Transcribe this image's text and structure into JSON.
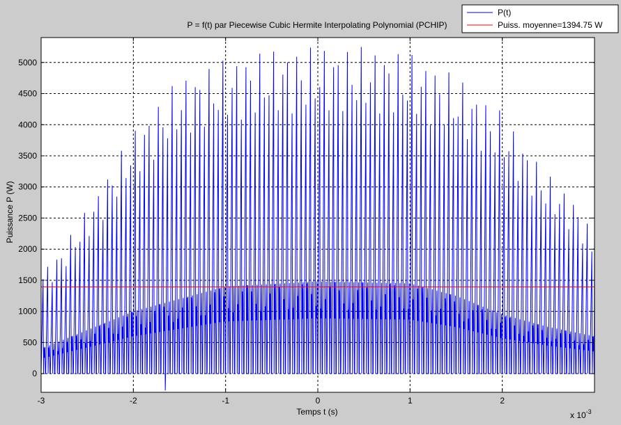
{
  "chart_data": {
    "type": "line",
    "title": "P  = f(t) par Piecewise Cubic Hermite Interpolating Polynomial (PCHIP)",
    "xlabel": "Temps t (s)",
    "ylabel": "Puissance P  (W)",
    "x_exponent_label": "x 10",
    "x_exponent_power": "-3",
    "xlim": [
      -3,
      3
    ],
    "ylim": [
      -300,
      5400
    ],
    "x_ticks": [
      "-3",
      "-2",
      "-1",
      "0",
      "1",
      "2"
    ],
    "x_tick_values": [
      -3,
      -2,
      -1,
      0,
      1,
      2
    ],
    "y_ticks": [
      "0",
      "500",
      "1000",
      "1500",
      "2000",
      "2500",
      "3000",
      "3500",
      "4000",
      "4500",
      "5000"
    ],
    "y_tick_values": [
      0,
      500,
      1000,
      1500,
      2000,
      2500,
      3000,
      3500,
      4000,
      4500,
      5000
    ],
    "grid": true,
    "legend_position": "top-right",
    "series": [
      {
        "name": "P(t)",
        "color": "#0000ff",
        "style": "oscillating",
        "cycles": 120,
        "peak_envelope": {
          "x": [
            -3,
            -2.8,
            -2.5,
            -2.2,
            -2.0,
            -1.5,
            -1.0,
            -0.5,
            0,
            0.5,
            1.0,
            1.5,
            2.0,
            2.5,
            2.8,
            3.0
          ],
          "y": [
            1650,
            1950,
            2650,
            3400,
            3900,
            4750,
            5050,
            5200,
            5250,
            5250,
            5150,
            4800,
            4200,
            3200,
            2800,
            2200
          ]
        },
        "mid_envelope": {
          "x": [
            -3,
            -2.5,
            -2.0,
            -1.5,
            -1.0,
            0,
            1.0,
            1.5,
            2.0,
            2.5,
            3.0
          ],
          "y": [
            400,
            700,
            1000,
            1200,
            1400,
            1480,
            1450,
            1250,
            950,
            750,
            600
          ]
        },
        "min_value": 0,
        "negative_dip": {
          "x": -1.65,
          "y": -270
        }
      },
      {
        "name": "Puiss. moyenne=1394.75 W",
        "color": "#ff0000",
        "style": "constant",
        "value": 1394.75
      }
    ]
  }
}
